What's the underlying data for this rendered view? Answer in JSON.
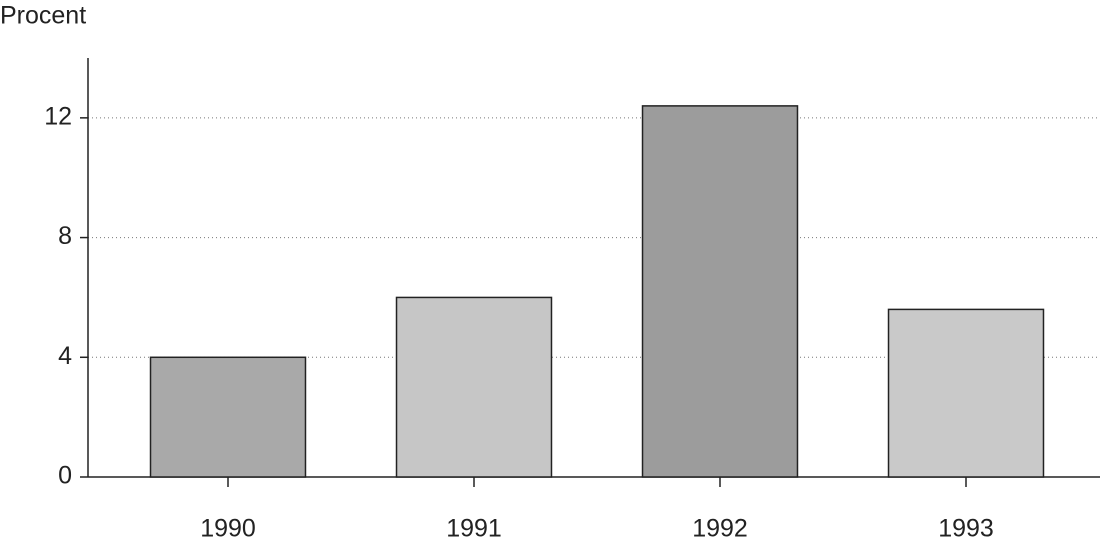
{
  "chart_data": {
    "type": "bar",
    "y_label": "Procent",
    "categories": [
      "1990",
      "1991",
      "1992",
      "1993"
    ],
    "values": [
      4.0,
      6.0,
      12.4,
      5.6
    ],
    "colors": [
      "#a9a9a9",
      "#c6c6c6",
      "#9c9c9c",
      "#c9c9c9"
    ],
    "ylim": [
      0,
      14
    ],
    "yticks": [
      0,
      4,
      8,
      12
    ],
    "grid": true
  }
}
